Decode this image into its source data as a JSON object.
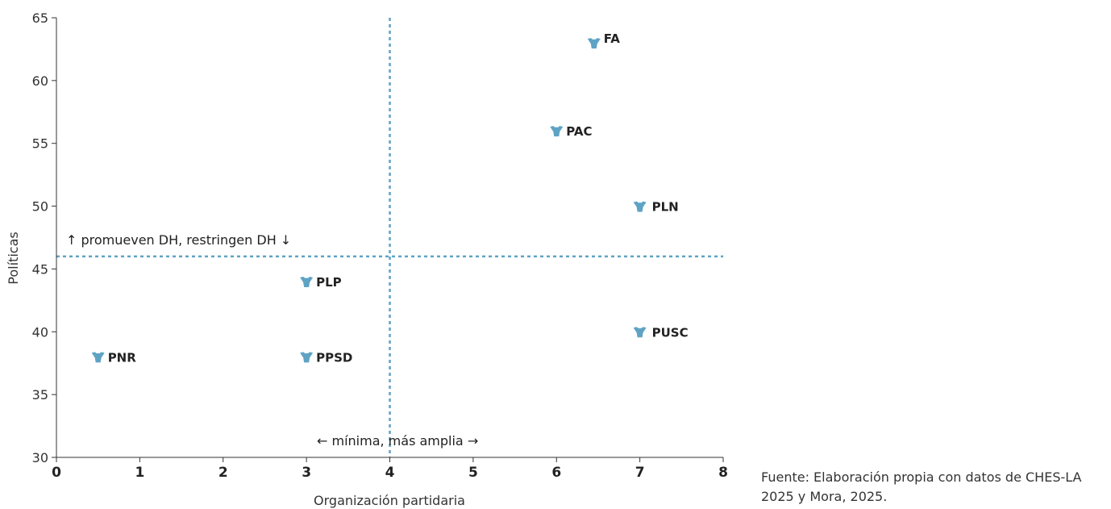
{
  "chart_data": {
    "type": "scatter",
    "title": "",
    "xlabel": "Organización partidaria",
    "ylabel": "Políticas",
    "xlim": [
      0,
      8
    ],
    "ylim": [
      30,
      65
    ],
    "x_ticks": [
      "0",
      "1",
      "2",
      "3",
      "4",
      "5",
      "6",
      "7",
      "8"
    ],
    "y_ticks": [
      "30",
      "35",
      "40",
      "45",
      "50",
      "55",
      "60",
      "65"
    ],
    "points": [
      {
        "label": "FA",
        "x": 6.45,
        "y": 63
      },
      {
        "label": "PAC",
        "x": 6.0,
        "y": 56
      },
      {
        "label": "PLN",
        "x": 7.0,
        "y": 50
      },
      {
        "label": "PLP",
        "x": 3.0,
        "y": 44
      },
      {
        "label": "PUSC",
        "x": 7.0,
        "y": 40
      },
      {
        "label": "PNR",
        "x": 0.5,
        "y": 38
      },
      {
        "label": "PPSD",
        "x": 3.0,
        "y": 38
      }
    ],
    "reference_lines": {
      "x": 4,
      "y": 46
    },
    "annotations": {
      "horizontal_line": "↑ promueven DH, restringen DH ↓",
      "vertical_line": "← mínima, más amplia →"
    },
    "marker_color": "#5fa3c4",
    "line_color": "#5fa3c4",
    "grid": false
  },
  "source_note": "Fuente: Elaboración propia con datos de CHES-LA 2025 y Mora, 2025."
}
